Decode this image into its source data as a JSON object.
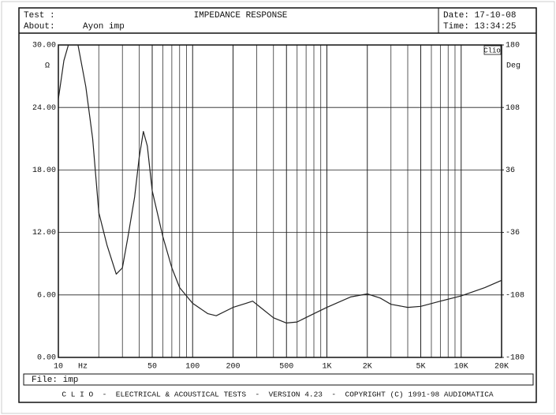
{
  "chart_data": {
    "type": "line",
    "test_label": "Test :",
    "title": "IMPEDANCE RESPONSE",
    "date": "Date: 17-10-08",
    "about_label": "About:",
    "about_value": "Ayon imp",
    "time": "Time: 13:34:25",
    "y_unit": "Ω",
    "y2_unit": "Deg",
    "x_unit": "Hz",
    "badge": "Clio",
    "file": "File: imp",
    "footer": "C L I O  -  ELECTRICAL & ACOUSTICAL TESTS  -  VERSION 4.23  -  COPYRIGHT (C) 1991-98 AUDIOMATICA",
    "xscale": "log",
    "xlim": [
      10,
      20000
    ],
    "xticks": [
      10,
      50,
      100,
      200,
      500,
      {
        "value": 1000,
        "label": "1K"
      },
      {
        "value": 2000,
        "label": "2K"
      },
      {
        "value": 5000,
        "label": "5K"
      },
      {
        "value": 10000,
        "label": "10K"
      },
      {
        "value": 20000,
        "label": "20K"
      }
    ],
    "xgrid": [
      20,
      30,
      40,
      60,
      70,
      80,
      90,
      300,
      400,
      600,
      700,
      800,
      900,
      3000,
      4000,
      6000,
      7000,
      8000,
      9000
    ],
    "ylim": [
      0,
      30
    ],
    "yticks": [
      {
        "value": 0,
        "label": "0.00"
      },
      {
        "value": 6,
        "label": "6.00"
      },
      {
        "value": 12,
        "label": "12.00"
      },
      {
        "value": 18,
        "label": "18.00"
      },
      {
        "value": 24,
        "label": "24.00"
      },
      {
        "value": 30,
        "label": "30.00"
      }
    ],
    "y2lim": [
      -180,
      180
    ],
    "y2ticks": [
      -180,
      -108,
      -36,
      36,
      108,
      180
    ],
    "grid": true,
    "series": [
      {
        "color": "#222222",
        "x": [
          10,
          11,
          12.5,
          14,
          16,
          18,
          20,
          23,
          27,
          30,
          33,
          37,
          40,
          43,
          46,
          50,
          60,
          70,
          80,
          100,
          130,
          150,
          200,
          250,
          280,
          320,
          400,
          500,
          600,
          800,
          1000,
          1500,
          2000,
          2500,
          3000,
          4000,
          5000,
          7000,
          10000,
          15000,
          20000
        ],
        "values": [
          24.8,
          28.5,
          31,
          30,
          26,
          21,
          13.9,
          10.8,
          8,
          8.6,
          11.6,
          15.4,
          19.2,
          21.7,
          20.3,
          16,
          11.6,
          8.6,
          6.7,
          5.2,
          4.2,
          4.0,
          4.8,
          5.2,
          5.4,
          4.8,
          3.8,
          3.3,
          3.4,
          4.2,
          4.8,
          5.8,
          6.1,
          5.7,
          5.1,
          4.8,
          4.9,
          5.4,
          5.9,
          6.7,
          7.4
        ]
      }
    ]
  }
}
